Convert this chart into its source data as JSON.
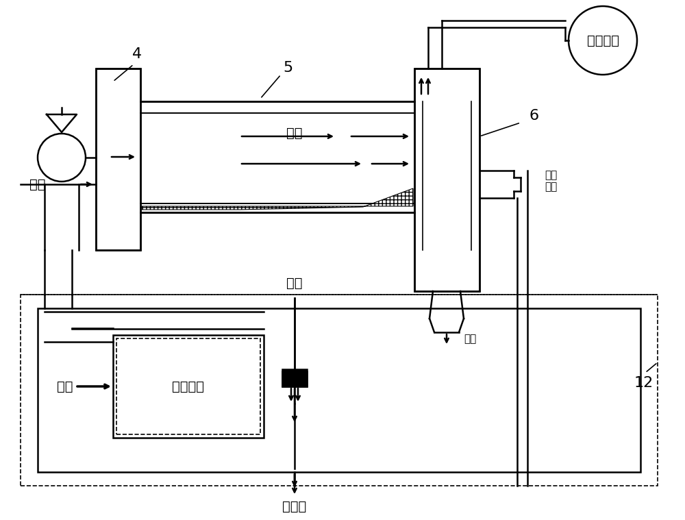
{
  "bg_color": "#ffffff",
  "line_color": "#000000",
  "hatching_color": "#000000",
  "label_4": "4",
  "label_5": "5",
  "label_6": "6",
  "label_12": "12",
  "text_hot_wind_upper": "热风",
  "text_hot_wind_left": "热风",
  "text_air": "空气",
  "text_heat_exchanger": "热交换器",
  "text_steam": "蒸汽",
  "text_condensate": "冷凝水",
  "text_dust_fan": "除尘风机",
  "text_rotating_joint": "旋转\n接头",
  "text_leaf_shred": "叶丝"
}
